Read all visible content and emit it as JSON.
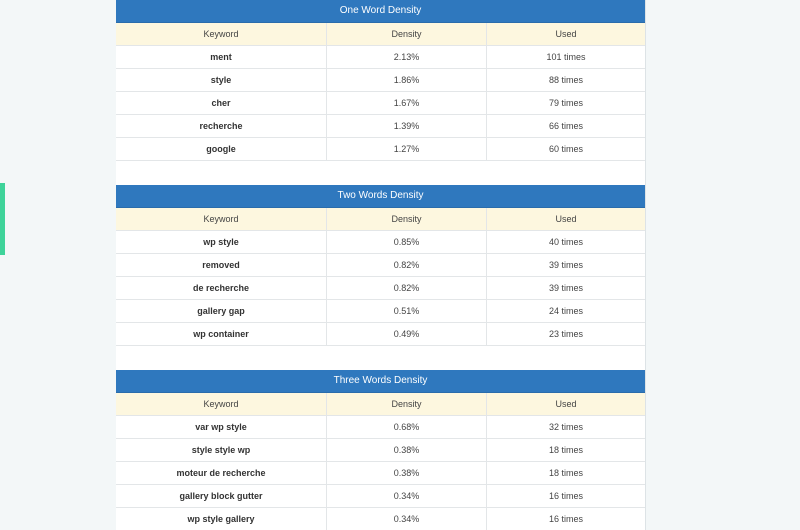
{
  "sections": [
    {
      "title": "One Word Density",
      "columns": [
        "Keyword",
        "Density",
        "Used"
      ],
      "rows": [
        [
          "ment",
          "2.13%",
          "101 times"
        ],
        [
          "style",
          "1.86%",
          "88 times"
        ],
        [
          "cher",
          "1.67%",
          "79 times"
        ],
        [
          "recherche",
          "1.39%",
          "66 times"
        ],
        [
          "google",
          "1.27%",
          "60 times"
        ]
      ]
    },
    {
      "title": "Two Words Density",
      "columns": [
        "Keyword",
        "Density",
        "Used"
      ],
      "rows": [
        [
          "wp style",
          "0.85%",
          "40 times"
        ],
        [
          "removed",
          "0.82%",
          "39 times"
        ],
        [
          "de recherche",
          "0.82%",
          "39 times"
        ],
        [
          "gallery gap",
          "0.51%",
          "24 times"
        ],
        [
          "wp container",
          "0.49%",
          "23 times"
        ]
      ]
    },
    {
      "title": "Three Words Density",
      "columns": [
        "Keyword",
        "Density",
        "Used"
      ],
      "rows": [
        [
          "var wp style",
          "0.68%",
          "32 times"
        ],
        [
          "style style wp",
          "0.38%",
          "18 times"
        ],
        [
          "moteur de recherche",
          "0.38%",
          "18 times"
        ],
        [
          "gallery block gutter",
          "0.34%",
          "16 times"
        ],
        [
          "wp style gallery",
          "0.34%",
          "16 times"
        ]
      ]
    }
  ]
}
